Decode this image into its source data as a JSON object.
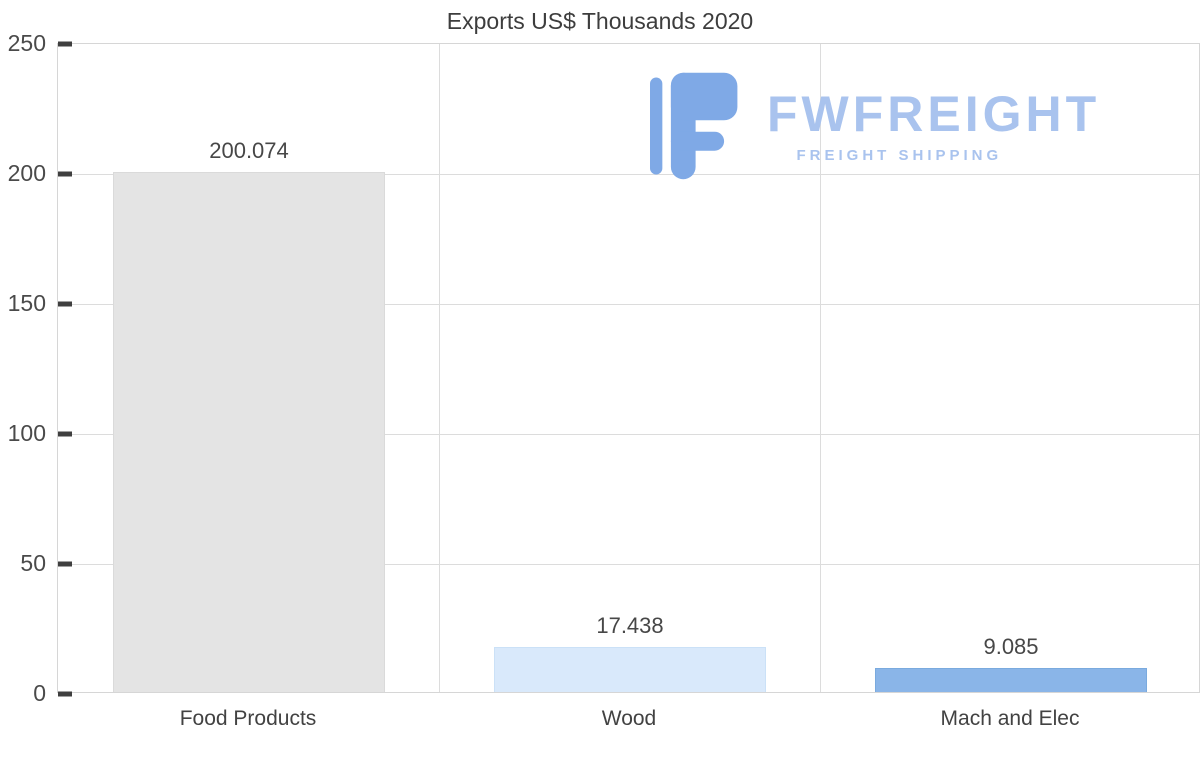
{
  "chart_data": {
    "type": "bar",
    "title": "Exports US$ Thousands 2020",
    "categories": [
      "Food Products",
      "Wood",
      "Mach and Elec"
    ],
    "values": [
      200.074,
      17.438,
      9.085
    ],
    "value_labels": [
      "200.074",
      "17.438",
      "9.085"
    ],
    "bar_colors": [
      "#e4e4e4",
      "#d9e9fb",
      "#8ab5e8"
    ],
    "bar_borders": [
      "#dadada",
      "#cbe1f7",
      "#7aaade"
    ],
    "ylim": [
      0,
      250
    ],
    "yticks": [
      0,
      50,
      100,
      150,
      200,
      250
    ],
    "grid": true,
    "legend": false,
    "xlabel": "",
    "ylabel": ""
  },
  "watermark": {
    "brand": "FWFREIGHT",
    "tagline": "FREIGHT SHIPPING",
    "text_color": "#a9c3ee",
    "icon_color": "#7fa9e6"
  }
}
